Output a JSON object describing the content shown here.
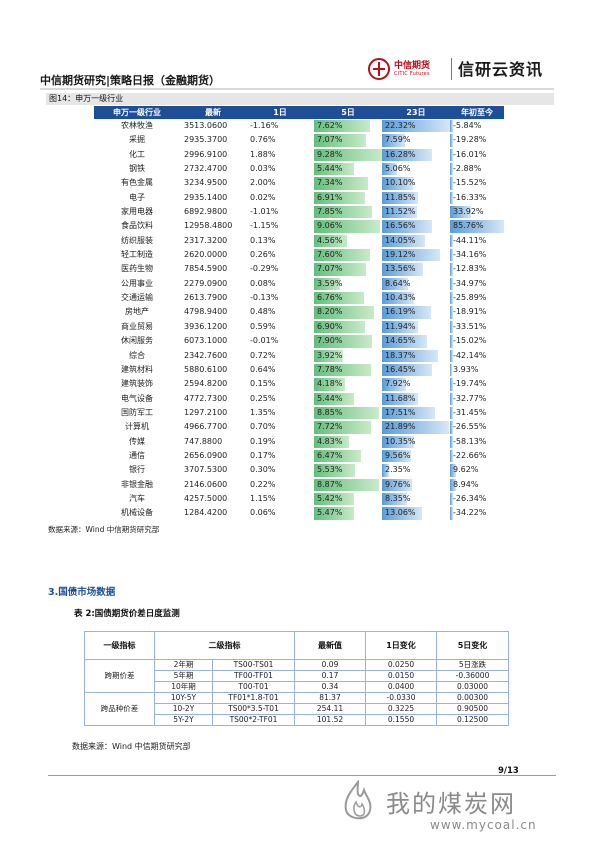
{
  "header": {
    "title": "中信期货研究|策略日报（金融期货）",
    "logo_cn": "中信期货",
    "logo_en": "CITIC Futures",
    "brand": "信研云资讯"
  },
  "figure": {
    "caption": "图14：申万一级行业",
    "columns": [
      "申万一级行业",
      "最新",
      "1日",
      "5日",
      "23日",
      "年初至今"
    ],
    "rows": [
      {
        "name": "农林牧渔",
        "last": "3513.0600",
        "d1": "-1.16%",
        "d5": "7.62%",
        "d23": "22.32%",
        "ytd": "-5.84%"
      },
      {
        "name": "采掘",
        "last": "2935.3700",
        "d1": "0.76%",
        "d5": "7.07%",
        "d23": "7.59%",
        "ytd": "-19.28%"
      },
      {
        "name": "化工",
        "last": "2996.9100",
        "d1": "1.88%",
        "d5": "9.28%",
        "d23": "16.28%",
        "ytd": "-16.01%"
      },
      {
        "name": "钢铁",
        "last": "2732.4700",
        "d1": "0.03%",
        "d5": "5.44%",
        "d23": "5.06%",
        "ytd": "-2.88%"
      },
      {
        "name": "有色金属",
        "last": "3234.9500",
        "d1": "2.00%",
        "d5": "7.34%",
        "d23": "10.10%",
        "ytd": "-15.52%"
      },
      {
        "name": "电子",
        "last": "2935.1400",
        "d1": "0.02%",
        "d5": "6.91%",
        "d23": "11.85%",
        "ytd": "-16.33%"
      },
      {
        "name": "家用电器",
        "last": "6892.9800",
        "d1": "-1.01%",
        "d5": "7.85%",
        "d23": "11.52%",
        "ytd": "33.92%"
      },
      {
        "name": "食品饮料",
        "last": "12958.4800",
        "d1": "-1.15%",
        "d5": "9.06%",
        "d23": "16.56%",
        "ytd": "85.76%"
      },
      {
        "name": "纺织服装",
        "last": "2317.3200",
        "d1": "0.13%",
        "d5": "4.56%",
        "d23": "14.05%",
        "ytd": "-44.11%"
      },
      {
        "name": "轻工制造",
        "last": "2620.0000",
        "d1": "0.26%",
        "d5": "7.60%",
        "d23": "19.12%",
        "ytd": "-34.16%"
      },
      {
        "name": "医药生物",
        "last": "7854.5900",
        "d1": "-0.29%",
        "d5": "7.07%",
        "d23": "13.56%",
        "ytd": "-12.83%"
      },
      {
        "name": "公用事业",
        "last": "2279.0900",
        "d1": "0.08%",
        "d5": "3.59%",
        "d23": "8.64%",
        "ytd": "-34.97%"
      },
      {
        "name": "交通运输",
        "last": "2613.7900",
        "d1": "-0.13%",
        "d5": "6.76%",
        "d23": "10.43%",
        "ytd": "-25.89%"
      },
      {
        "name": "房地产",
        "last": "4798.9400",
        "d1": "0.48%",
        "d5": "8.20%",
        "d23": "16.19%",
        "ytd": "-18.91%"
      },
      {
        "name": "商业贸易",
        "last": "3936.1200",
        "d1": "0.59%",
        "d5": "6.90%",
        "d23": "11.94%",
        "ytd": "-33.51%"
      },
      {
        "name": "休闲服务",
        "last": "6073.1000",
        "d1": "-0.01%",
        "d5": "7.90%",
        "d23": "14.65%",
        "ytd": "-15.02%"
      },
      {
        "name": "综合",
        "last": "2342.7600",
        "d1": "0.72%",
        "d5": "3.92%",
        "d23": "18.37%",
        "ytd": "-42.14%"
      },
      {
        "name": "建筑材料",
        "last": "5880.6100",
        "d1": "0.64%",
        "d5": "7.78%",
        "d23": "16.45%",
        "ytd": "3.93%"
      },
      {
        "name": "建筑装饰",
        "last": "2594.8200",
        "d1": "0.15%",
        "d5": "4.18%",
        "d23": "7.92%",
        "ytd": "-19.74%"
      },
      {
        "name": "电气设备",
        "last": "4772.7300",
        "d1": "0.25%",
        "d5": "5.44%",
        "d23": "11.68%",
        "ytd": "-32.77%"
      },
      {
        "name": "国防军工",
        "last": "1297.2100",
        "d1": "1.35%",
        "d5": "8.85%",
        "d23": "17.51%",
        "ytd": "-31.45%"
      },
      {
        "name": "计算机",
        "last": "4966.7700",
        "d1": "0.70%",
        "d5": "7.72%",
        "d23": "21.89%",
        "ytd": "-26.55%"
      },
      {
        "name": "传媒",
        "last": "747.8800",
        "d1": "0.19%",
        "d5": "4.83%",
        "d23": "10.35%",
        "ytd": "-58.13%"
      },
      {
        "name": "通信",
        "last": "2656.0900",
        "d1": "0.17%",
        "d5": "6.47%",
        "d23": "9.56%",
        "ytd": "-22.66%"
      },
      {
        "name": "银行",
        "last": "3707.5300",
        "d1": "0.30%",
        "d5": "5.53%",
        "d23": "2.35%",
        "ytd": "9.62%"
      },
      {
        "name": "非银金融",
        "last": "2146.0600",
        "d1": "0.22%",
        "d5": "8.87%",
        "d23": "9.76%",
        "ytd": "8.94%"
      },
      {
        "name": "汽车",
        "last": "4257.5000",
        "d1": "1.15%",
        "d5": "5.42%",
        "d23": "8.35%",
        "ytd": "-26.34%"
      },
      {
        "name": "机械设备",
        "last": "1284.4200",
        "d1": "0.06%",
        "d5": "5.47%",
        "d23": "13.06%",
        "ytd": "-34.22%"
      }
    ],
    "source": "数据来源：Wind   中信期货研究部"
  },
  "section3": {
    "heading": "3.国债市场数据",
    "table_caption": "表 2:国债期货价差日度监测",
    "columns": [
      "一级指标",
      "二级指标",
      "最新值",
      "1日变化",
      "5日变化"
    ],
    "groups": [
      {
        "name": "跨期价差",
        "rows": [
          {
            "term": "2年期",
            "code": "TS00-TS01",
            "last": "0.09",
            "d1": "0.0250",
            "d5": "5日涨跌"
          },
          {
            "term": "5年期",
            "code": "TF00-TF01",
            "last": "0.17",
            "d1": "0.0150",
            "d5": "-0.36000"
          },
          {
            "term": "10年期",
            "code": "T00-T01",
            "last": "0.34",
            "d1": "0.0400",
            "d5": "0.03000"
          }
        ]
      },
      {
        "name": "跨品种价差",
        "rows": [
          {
            "term": "10Y-5Y",
            "code": "TF01*1.8-T01",
            "last": "81.37",
            "d1": "-0.0330",
            "d5": "0.00300"
          },
          {
            "term": "10-2Y",
            "code": "TS00*3.5-T01",
            "last": "254.11",
            "d1": "0.3225",
            "d5": "0.90500"
          },
          {
            "term": "5Y-2Y",
            "code": "TS00*2-TF01",
            "last": "101.52",
            "d1": "0.1550",
            "d5": "0.12500"
          }
        ]
      }
    ],
    "source": "数据来源：Wind   中信期货研究部"
  },
  "footer": {
    "page": "9/13"
  },
  "watermark": {
    "text": "我的煤炭网",
    "url": "www.mycoal.cn"
  },
  "colors": {
    "header_blue": "#1f4e98",
    "bar_green": "#63be7b",
    "bar_blue": "#5b9bd5",
    "logo_red": "#b3141c"
  }
}
